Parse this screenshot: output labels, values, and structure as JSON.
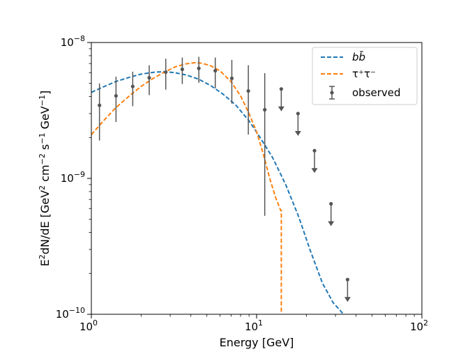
{
  "chart_data": {
    "type": "line",
    "title": "",
    "xlabel": "Energy [GeV]",
    "ylabel_parts": [
      "E",
      "2",
      "dN/dE [GeV",
      "2",
      " cm",
      "−2",
      " s",
      "−1",
      " GeV",
      "−1",
      "]"
    ],
    "xscale": "log",
    "yscale": "log",
    "xlim": [
      1,
      100
    ],
    "ylim": [
      1e-10,
      1e-08
    ],
    "x_ticks": [
      {
        "value": 1,
        "base": "10",
        "exp": "0"
      },
      {
        "value": 10,
        "base": "10",
        "exp": "1"
      },
      {
        "value": 100,
        "base": "10",
        "exp": "2"
      }
    ],
    "y_ticks": [
      {
        "value": 1e-10,
        "base": "10",
        "exp": "−10"
      },
      {
        "value": 1e-09,
        "base": "10",
        "exp": "−9"
      },
      {
        "value": 1e-08,
        "base": "10",
        "exp": "−8"
      }
    ],
    "grid": false,
    "legend_position": "top-right",
    "series": [
      {
        "name": "bb",
        "legend_label": "bb̄",
        "style": "dashed",
        "color": "#1f77b4",
        "x": [
          1.0,
          1.2,
          1.4,
          1.7,
          2.0,
          2.4,
          2.8,
          3.2,
          3.8,
          4.5,
          5.3,
          6.3,
          7.5,
          9.0,
          10.5,
          12.5,
          15.0,
          18.0,
          21.0,
          25.0,
          29.0,
          32.0,
          33.5
        ],
        "y": [
          4.3e-09,
          4.75e-09,
          5.15e-09,
          5.55e-09,
          5.85e-09,
          6.05e-09,
          6.1e-09,
          6e-09,
          5.75e-09,
          5.35e-09,
          4.8e-09,
          4.15e-09,
          3.45e-09,
          2.65e-09,
          2e-09,
          1.42e-09,
          9e-10,
          5.2e-10,
          3e-10,
          1.7e-10,
          1.22e-10,
          1.07e-10,
          1e-10
        ]
      },
      {
        "name": "tautau",
        "legend_label": "τ⁺τ⁻",
        "style": "dashed",
        "color": "#ff7f0e",
        "x": [
          1.0,
          1.2,
          1.4,
          1.7,
          2.0,
          2.4,
          2.8,
          3.2,
          3.7,
          4.2,
          4.6,
          5.2,
          6.0,
          7.0,
          8.0,
          9.0,
          10.0,
          11.0,
          12.0,
          13.0,
          14.0,
          14.1,
          14.1
        ],
        "y": [
          2.1e-09,
          2.7e-09,
          3.3e-09,
          4.05e-09,
          4.75e-09,
          5.5e-09,
          6.1e-09,
          6.6e-09,
          6.95e-09,
          7.1e-09,
          7.05e-09,
          6.8e-09,
          6.2e-09,
          5.15e-09,
          4.05e-09,
          3e-09,
          2.2e-09,
          1.5e-09,
          1e-09,
          7.3e-10,
          5.8e-10,
          5.8e-10,
          1e-10
        ]
      }
    ],
    "observed": {
      "name": "observed",
      "legend_label": "observed",
      "color": "#555555",
      "points": [
        {
          "x": 1.12,
          "y": 3.45e-09,
          "lo": 1.9e-09,
          "hi": 5e-09
        },
        {
          "x": 1.41,
          "y": 4.05e-09,
          "lo": 2.6e-09,
          "hi": 5.6e-09
        },
        {
          "x": 1.78,
          "y": 4.75e-09,
          "lo": 3.4e-09,
          "hi": 6.1e-09
        },
        {
          "x": 2.24,
          "y": 5.5e-09,
          "lo": 4.1e-09,
          "hi": 6.8e-09
        },
        {
          "x": 2.82,
          "y": 6.05e-09,
          "lo": 4.5e-09,
          "hi": 7.6e-09
        },
        {
          "x": 3.55,
          "y": 6.35e-09,
          "lo": 4.95e-09,
          "hi": 7.75e-09
        },
        {
          "x": 4.47,
          "y": 6.45e-09,
          "lo": 5.05e-09,
          "hi": 7.85e-09
        },
        {
          "x": 5.62,
          "y": 6.2e-09,
          "lo": 4.6e-09,
          "hi": 7.75e-09
        },
        {
          "x": 7.08,
          "y": 5.45e-09,
          "lo": 3.55e-09,
          "hi": 7.45e-09
        },
        {
          "x": 8.91,
          "y": 4.4e-09,
          "lo": 2.1e-09,
          "hi": 6.8e-09
        },
        {
          "x": 11.2,
          "y": 3.2e-09,
          "lo": 5.3e-10,
          "hi": 5.95e-09
        }
      ],
      "upper_limits": [
        {
          "x": 14.1,
          "y": 4.55e-09
        },
        {
          "x": 17.8,
          "y": 3e-09
        },
        {
          "x": 22.4,
          "y": 1.6e-09
        },
        {
          "x": 28.2,
          "y": 6.5e-10
        },
        {
          "x": 35.5,
          "y": 1.8e-10
        }
      ]
    }
  }
}
